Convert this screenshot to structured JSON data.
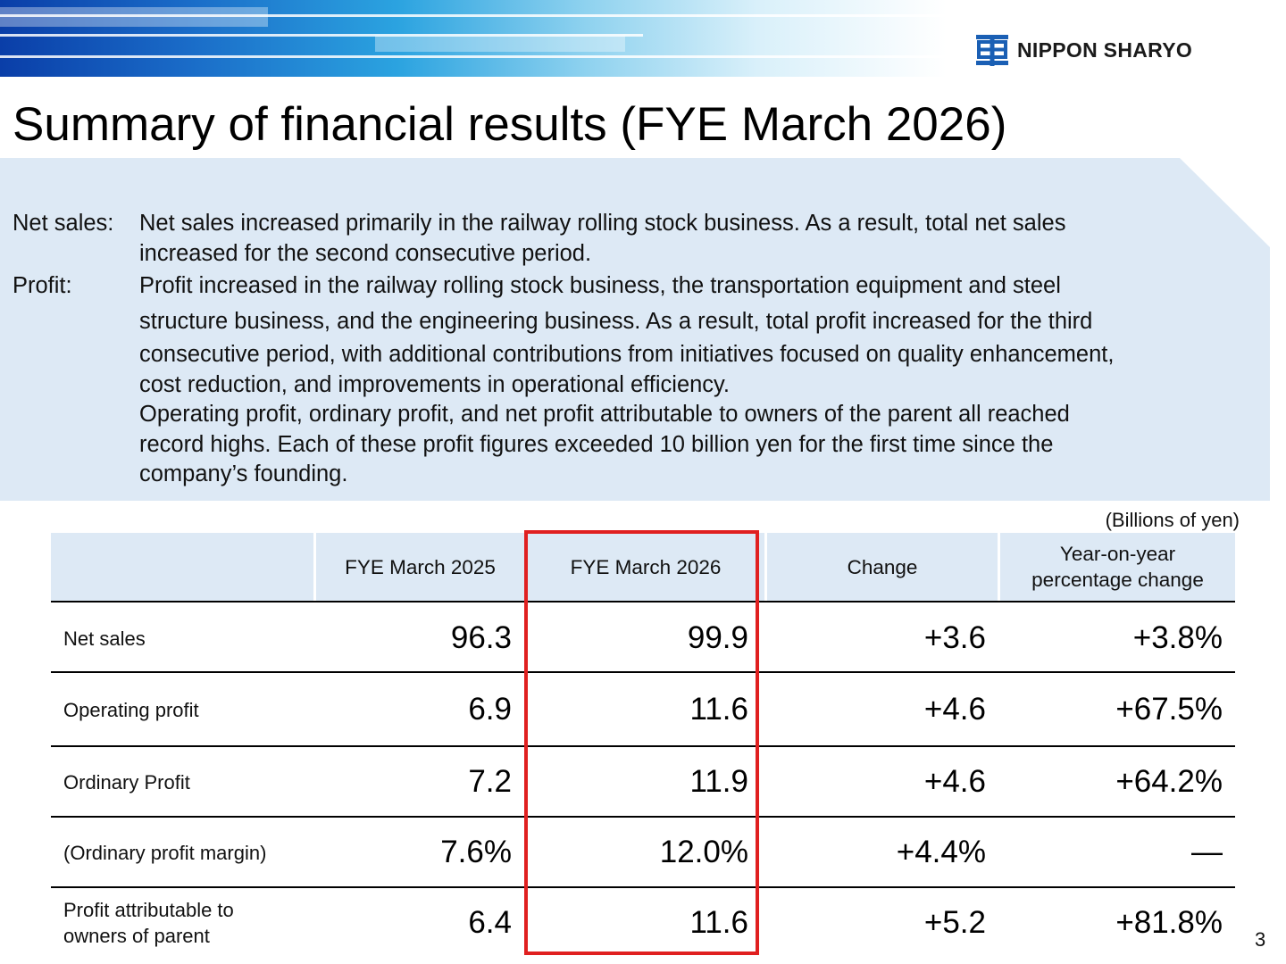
{
  "company": {
    "name": "NIPPON SHARYO",
    "logo_icon": "nippon-sharyo-logo-icon"
  },
  "title": "Summary of financial results (FYE March 2026)",
  "summary": {
    "net_sales_label": "Net sales:",
    "net_sales_lines": [
      "Net sales increased primarily in the railway rolling stock business. As a result, total net sales",
      "increased for the second consecutive period."
    ],
    "profit_label": "Profit:",
    "profit_lines": [
      "Profit increased in the railway rolling stock business, the transportation equipment and steel",
      "structure business, and the engineering business. As a result, total profit increased for the third",
      "consecutive period, with additional contributions from initiatives focused on quality enhancement,",
      "cost reduction, and improvements in operational efficiency.",
      "Operating profit, ordinary profit, and net profit attributable to owners of the parent all reached",
      "record highs. Each of these profit figures exceeded 10 billion yen for the first time since the",
      "company’s founding."
    ]
  },
  "table": {
    "unit": "(Billions of yen)",
    "headers": [
      "",
      "FYE March 2025",
      "FYE March 2026",
      "Change",
      "Year-on-year percentage change"
    ],
    "header_yoy_lines": [
      "Year-on-year",
      "percentage change"
    ],
    "rows": [
      {
        "label_lines": [
          "Net sales"
        ],
        "values": [
          "96.3",
          "99.9",
          "+3.6",
          "+3.8%"
        ]
      },
      {
        "label_lines": [
          "Operating profit"
        ],
        "values": [
          "6.9",
          "11.6",
          "+4.6",
          "+67.5%"
        ]
      },
      {
        "label_lines": [
          "Ordinary Profit"
        ],
        "values": [
          "7.2",
          "11.9",
          "+4.6",
          "+64.2%"
        ]
      },
      {
        "label_lines": [
          "(Ordinary profit margin)"
        ],
        "values": [
          "7.6%",
          "12.0%",
          "+4.4%",
          "―"
        ]
      },
      {
        "label_lines": [
          "Profit attributable to",
          "owners of parent"
        ],
        "values": [
          "6.4",
          "11.6",
          "+5.2",
          "+81.8%"
        ]
      }
    ]
  },
  "highlight_color": "#e02020",
  "page_number": "3"
}
